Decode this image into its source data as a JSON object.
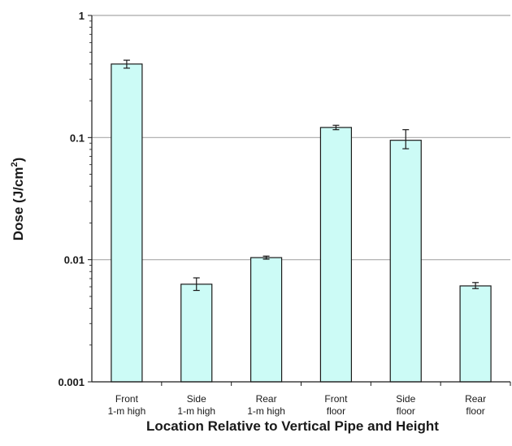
{
  "chart_data": {
    "type": "bar",
    "title": "",
    "xlabel": "Location Relative to Vertical Pipe and Height",
    "ylabel_main": "Dose (J/cm",
    "ylabel_sup": "2",
    "ylabel_close": ")",
    "yscale": "log",
    "ylim": [
      0.001,
      1
    ],
    "yticks": [
      {
        "value": 0.001,
        "label": "0.001"
      },
      {
        "value": 0.01,
        "label": "0.01"
      },
      {
        "value": 0.1,
        "label": "0.1"
      },
      {
        "value": 1,
        "label": "1"
      }
    ],
    "categories": [
      {
        "line1": "Front",
        "line2": "1-m high"
      },
      {
        "line1": "Side",
        "line2": "1-m high"
      },
      {
        "line1": "Rear",
        "line2": "1-m high"
      },
      {
        "line1": "Front",
        "line2": "floor"
      },
      {
        "line1": "Side",
        "line2": "floor"
      },
      {
        "line1": "Rear",
        "line2": "floor"
      }
    ],
    "values": [
      0.4,
      0.0063,
      0.0104,
      0.121,
      0.095,
      0.0061
    ],
    "error_low": [
      0.37,
      0.0056,
      0.0101,
      0.116,
      0.081,
      0.0058
    ],
    "error_high": [
      0.43,
      0.0071,
      0.0107,
      0.126,
      0.116,
      0.0065
    ],
    "grid": "major-y",
    "legend": "none",
    "bar_color": "#ccfbf6",
    "bar_edge": "#1a1a1a",
    "grid_color": "#a9a9a9"
  }
}
